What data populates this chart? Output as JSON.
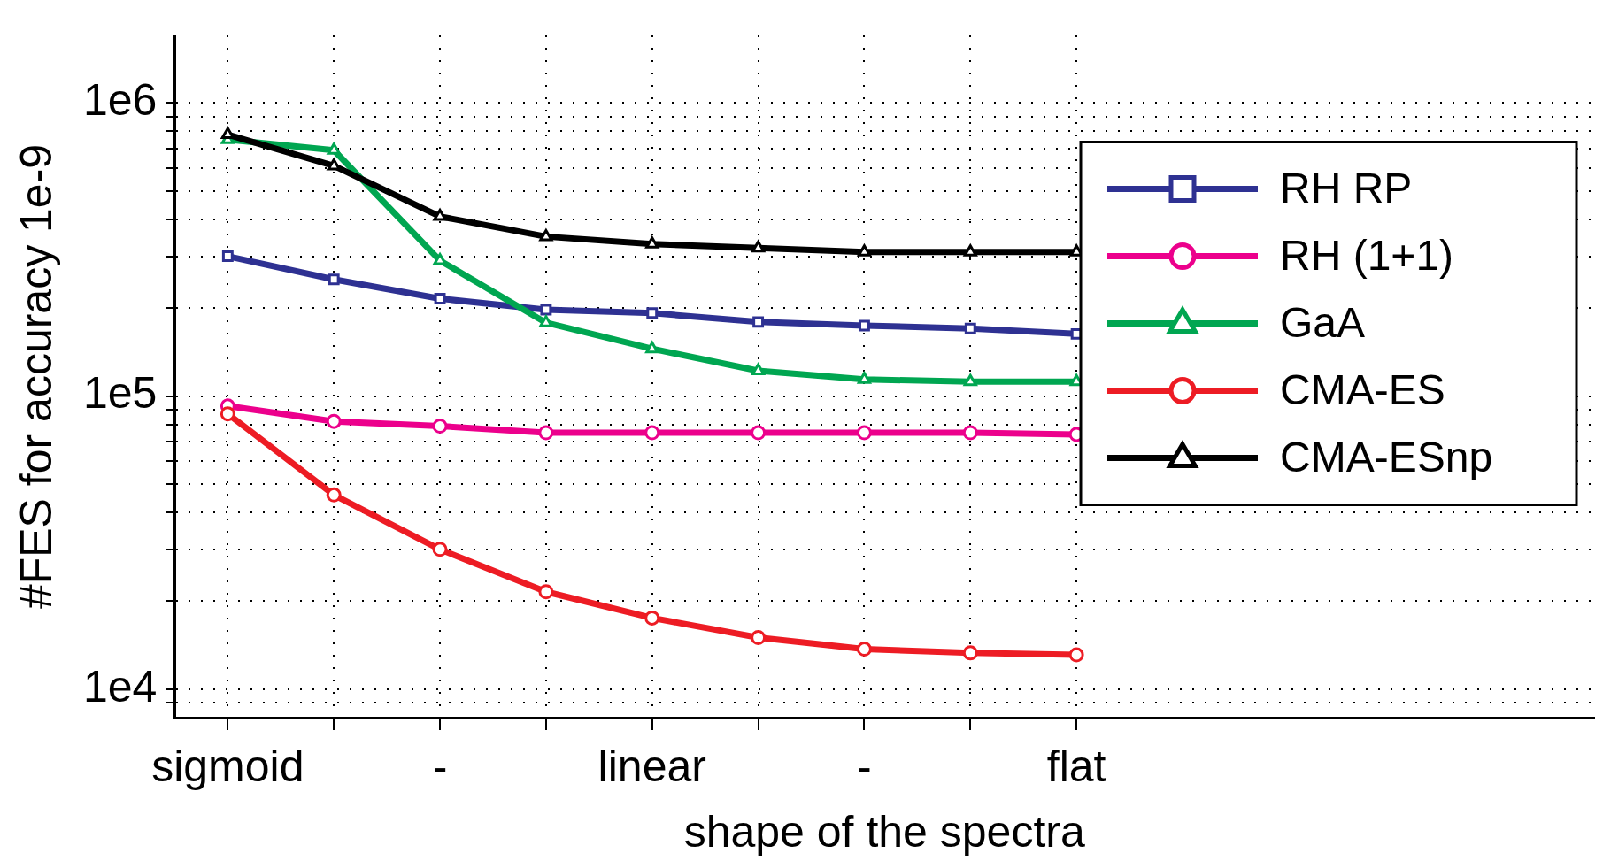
{
  "chart_data": {
    "type": "line",
    "xlabel": "shape of the spectra",
    "ylabel": "#FES for accuracy 1e-9",
    "log": "y",
    "grid": true,
    "legend": "right",
    "line_style": "solid",
    "categories": [
      "sigmoid",
      null,
      "-",
      null,
      "linear",
      null,
      "-",
      null,
      "flat"
    ],
    "ylim": [
      8000,
      1700000
    ],
    "yticks": [
      {
        "value": 9000,
        "label": null
      },
      {
        "value": 10000,
        "label": "1e4"
      },
      {
        "value": 20000,
        "label": null
      },
      {
        "value": 30000,
        "label": null
      },
      {
        "value": 40000,
        "label": null
      },
      {
        "value": 50000,
        "label": null
      },
      {
        "value": 60000,
        "label": null
      },
      {
        "value": 70000,
        "label": null
      },
      {
        "value": 80000,
        "label": null
      },
      {
        "value": 90000,
        "label": null
      },
      {
        "value": 100000,
        "label": "1e5"
      },
      {
        "value": 200000,
        "label": null
      },
      {
        "value": 300000,
        "label": null
      },
      {
        "value": 400000,
        "label": null
      },
      {
        "value": 500000,
        "label": null
      },
      {
        "value": 600000,
        "label": null
      },
      {
        "value": 700000,
        "label": null
      },
      {
        "value": 800000,
        "label": null
      },
      {
        "value": 900000,
        "label": null
      },
      {
        "value": 1000000,
        "label": "1e6"
      }
    ],
    "series": [
      {
        "name": "RH RP",
        "color": "#2e3192",
        "marker": "square",
        "values": [
          300000,
          250000,
          215000,
          197000,
          192000,
          179000,
          174000,
          170000,
          163000
        ]
      },
      {
        "name": "RH (1+1)",
        "color": "#ec008c",
        "marker": "circle",
        "values": [
          92500,
          82000,
          79000,
          75000,
          75000,
          75000,
          75000,
          75000,
          74000
        ]
      },
      {
        "name": "GaA",
        "color": "#00a651",
        "marker": "triangle",
        "values": [
          750000,
          690000,
          290000,
          178000,
          145000,
          122000,
          114000,
          112000,
          112000
        ]
      },
      {
        "name": "CMA-ES",
        "color": "#ed1c24",
        "marker": "circle",
        "values": [
          87000,
          46000,
          30000,
          21500,
          17500,
          15000,
          13700,
          13300,
          13100
        ]
      },
      {
        "name": "CMA-ESnp",
        "color": "#000000",
        "marker": "triangle",
        "values": [
          780000,
          610000,
          410000,
          350000,
          330000,
          320000,
          310000,
          310000,
          310000
        ]
      }
    ]
  }
}
